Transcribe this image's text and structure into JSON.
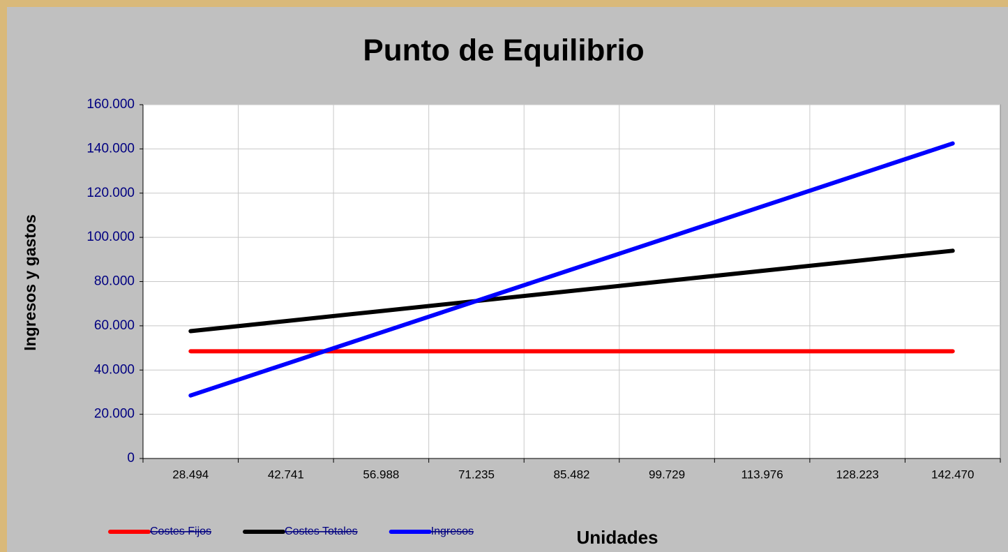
{
  "chart_data": {
    "type": "line",
    "title": "Punto de Equilibrio",
    "xlabel": "Unidades",
    "ylabel": "Ingresos y gastos",
    "categories": [
      "28.494",
      "42.741",
      "56.988",
      "71.235",
      "85.482",
      "99.729",
      "113.976",
      "128.223",
      "142.470"
    ],
    "series": [
      {
        "name": "Costes Fijos",
        "color": "#ff0000",
        "values": [
          48500,
          48500,
          48500,
          48500,
          48500,
          48500,
          48500,
          48500,
          48500
        ]
      },
      {
        "name": "Costes Totales",
        "color": "#000000",
        "values": [
          57590,
          62134,
          66679,
          71224,
          75769,
          80314,
          84858,
          89403,
          93948
        ]
      },
      {
        "name": "Ingresos",
        "color": "#0000ff",
        "values": [
          28494,
          42741,
          56988,
          71235,
          85482,
          99729,
          113976,
          128223,
          142470
        ]
      }
    ],
    "ylim": [
      0,
      160000
    ],
    "yticks": [
      0,
      {
        "value": 20000,
        "label": "20.000"
      },
      {
        "value": 40000,
        "label": "40.000"
      },
      {
        "value": 60000,
        "label": "60.000"
      },
      {
        "value": 80000,
        "label": "80.000"
      },
      {
        "value": 100000,
        "label": "100.000"
      },
      {
        "value": 120000,
        "label": "120.000"
      },
      {
        "value": 140000,
        "label": "140.000"
      },
      {
        "value": 160000,
        "label": "160.000"
      }
    ],
    "grid": true,
    "legend": "bottom"
  }
}
